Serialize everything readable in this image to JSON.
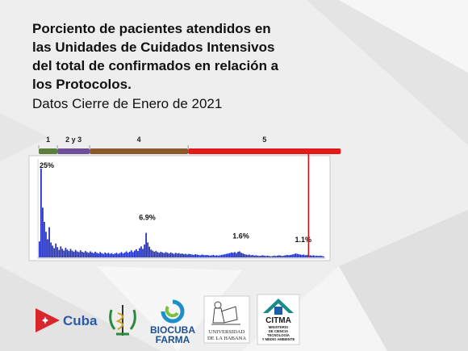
{
  "title": "Porciento de pacientes atendidos en\nlas Unidades de Cuidados  Intensivos\ndel total de confirmados en relación a\nlos Protocolos.",
  "subtitle": "Datos Cierre de Enero de 2021",
  "colors": {
    "bars": "#1f2fc4",
    "marker": "#c01a1a",
    "protocol_1": "#5c7f3e",
    "protocol_2y3": "#6d4f9a",
    "protocol_4": "#8a5a2b",
    "protocol_5": "#e21a1a"
  },
  "chart_data": {
    "type": "bar",
    "title": "",
    "xlabel": "",
    "ylabel": "",
    "protocols": [
      {
        "label": "1",
        "start": 0,
        "end": 11
      },
      {
        "label": "2 y 3",
        "start": 11,
        "end": 30
      },
      {
        "label": "4",
        "start": 30,
        "end": 88
      },
      {
        "label": "5",
        "start": 88,
        "end": 178
      }
    ],
    "annotations": [
      {
        "text": "25%",
        "index": 3
      },
      {
        "text": "6.9%",
        "index": 65
      },
      {
        "text": "1.6%",
        "index": 122
      },
      {
        "text": "1.1%",
        "index": 160
      }
    ],
    "ylim": [
      0,
      27
    ],
    "values": [
      4.5,
      25,
      14,
      10,
      7.2,
      5.1,
      8.5,
      4.2,
      3.3,
      2.6,
      3.9,
      2.9,
      2.1,
      3.1,
      2.4,
      1.9,
      2.7,
      2.2,
      1.8,
      2.4,
      1.9,
      1.6,
      2.1,
      1.7,
      1.5,
      2.0,
      1.6,
      1.4,
      1.8,
      1.5,
      1.3,
      1.7,
      1.4,
      1.2,
      1.6,
      1.3,
      1.1,
      1.5,
      1.2,
      1.0,
      1.4,
      1.1,
      1.3,
      1.0,
      1.2,
      0.9,
      1.1,
      1.3,
      1.0,
      1.2,
      1.5,
      1.1,
      1.4,
      1.7,
      1.3,
      1.6,
      2.0,
      1.5,
      1.9,
      2.3,
      1.8,
      2.6,
      3.1,
      2.4,
      3.6,
      6.9,
      4.2,
      3.0,
      2.2,
      1.9,
      1.6,
      1.8,
      1.5,
      1.3,
      1.6,
      1.4,
      1.2,
      1.5,
      1.3,
      1.1,
      1.4,
      1.2,
      1.0,
      1.3,
      1.1,
      1.2,
      1.0,
      1.1,
      0.9,
      1.0,
      0.8,
      1.0,
      0.9,
      0.8,
      0.7,
      0.9,
      0.8,
      0.7,
      0.6,
      0.8,
      0.7,
      0.6,
      0.7,
      0.6,
      0.5,
      0.6,
      0.7,
      0.5,
      0.6,
      0.5,
      0.6,
      0.7,
      0.8,
      0.9,
      1.0,
      1.1,
      1.2,
      1.4,
      1.3,
      1.5,
      1.2,
      1.6,
      1.7,
      1.3,
      1.1,
      0.9,
      0.8,
      0.7,
      0.8,
      0.6,
      0.7,
      0.5,
      0.6,
      0.5,
      0.4,
      0.5,
      0.6,
      0.5,
      0.4,
      0.5,
      0.4,
      0.3,
      0.4,
      0.5,
      0.4,
      0.5,
      0.6,
      0.5,
      0.4,
      0.5,
      0.6,
      0.7,
      0.6,
      0.7,
      0.8,
      0.9,
      1.1,
      1.0,
      0.9,
      0.8,
      0.7,
      0.8,
      0.6,
      0.7,
      0.5,
      0.6,
      0.5,
      0.6,
      0.4,
      0.5,
      0.4,
      0.5,
      0.4,
      0.3
    ],
    "marker_index": 159
  },
  "logos": {
    "cuba": {
      "text": "Cuba",
      "icon": "cuba-flag-icon"
    },
    "minsap": {
      "icon": "caduceus-emblem-icon"
    },
    "biocuba": {
      "line1": "BIOCUBA",
      "line2": "FARMA",
      "icon": "biocuba-swirl-icon"
    },
    "uh": {
      "line1": "UNIVERSIDAD",
      "line2": "DE LA HABANA",
      "icon": "alma-mater-icon"
    },
    "citma": {
      "name": "CITMA",
      "line1": "MINISTERIO",
      "line2": "DE CIENCIA",
      "line3": "TECNOLOGÍA",
      "line4": "Y MEDIO AMBIENTE",
      "icon": "citma-roof-icon"
    }
  }
}
